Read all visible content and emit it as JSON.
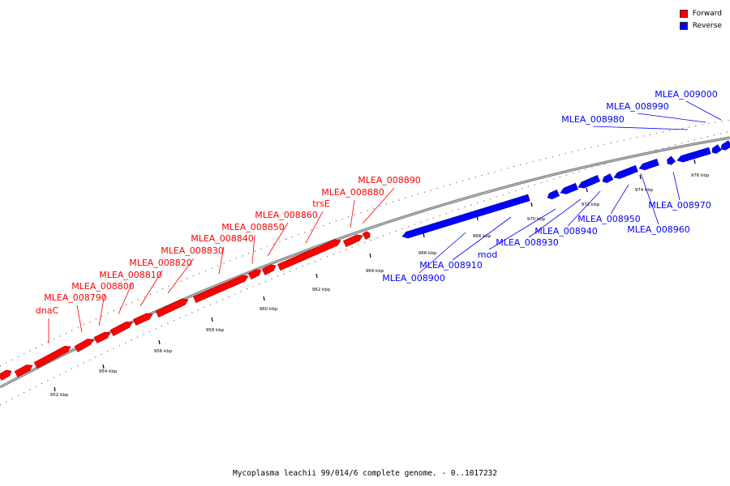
{
  "legend": {
    "forward_label": "Forward",
    "reverse_label": "Reverse",
    "forward_color": "#ff0000",
    "reverse_color": "#0000ff"
  },
  "caption": "Mycoplasma leachii 99/014/6 complete genome. - 0..1017232",
  "ticks": [
    "952 kbp",
    "954 kbp",
    "956 kbp",
    "958 kbp",
    "960 kbp",
    "962 kbp",
    "964 kbp",
    "966 kbp",
    "968 kbp",
    "970 kbp",
    "972 kbp",
    "974 kbp",
    "976 kbp"
  ],
  "genes": [
    {
      "name": "dnaC",
      "strand": "forward"
    },
    {
      "name": "MLEA_008790",
      "strand": "forward"
    },
    {
      "name": "MLEA_008800",
      "strand": "forward"
    },
    {
      "name": "MLEA_008810",
      "strand": "forward"
    },
    {
      "name": "MLEA_008820",
      "strand": "forward"
    },
    {
      "name": "MLEA_008830",
      "strand": "forward"
    },
    {
      "name": "MLEA_008840",
      "strand": "forward"
    },
    {
      "name": "MLEA_008850",
      "strand": "forward"
    },
    {
      "name": "MLEA_008860",
      "strand": "forward"
    },
    {
      "name": "trsE",
      "strand": "forward"
    },
    {
      "name": "MLEA_008880",
      "strand": "forward"
    },
    {
      "name": "MLEA_008890",
      "strand": "forward"
    },
    {
      "name": "MLEA_008900",
      "strand": "reverse"
    },
    {
      "name": "MLEA_008910",
      "strand": "reverse"
    },
    {
      "name": "mod",
      "strand": "reverse"
    },
    {
      "name": "MLEA_008930",
      "strand": "reverse"
    },
    {
      "name": "MLEA_008940",
      "strand": "reverse"
    },
    {
      "name": "MLEA_008950",
      "strand": "reverse"
    },
    {
      "name": "MLEA_008960",
      "strand": "reverse"
    },
    {
      "name": "MLEA_008970",
      "strand": "reverse"
    },
    {
      "name": "MLEA_008980",
      "strand": "reverse"
    },
    {
      "name": "MLEA_008990",
      "strand": "reverse"
    },
    {
      "name": "MLEA_009000",
      "strand": "reverse"
    }
  ]
}
